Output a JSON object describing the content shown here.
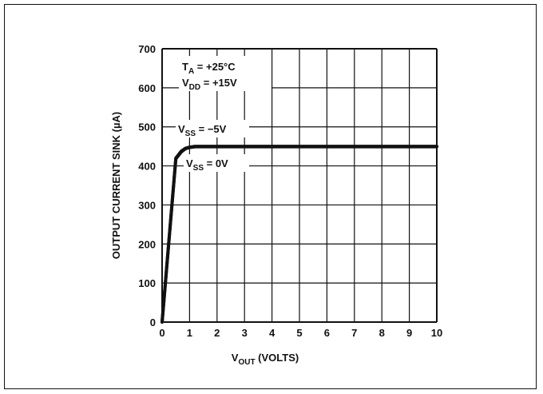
{
  "chart_data": {
    "type": "line",
    "title": "",
    "xlabel_main": "V",
    "xlabel_sub": "OUT",
    "xlabel_suffix": " (VOLTS)",
    "ylabel": "OUTPUT CURRENT SINK (µA)",
    "xlim": [
      0,
      10
    ],
    "ylim": [
      0,
      700
    ],
    "x_ticks": [
      "0",
      "1",
      "2",
      "3",
      "4",
      "5",
      "6",
      "7",
      "8",
      "9",
      "10"
    ],
    "y_ticks": [
      "0",
      "100",
      "200",
      "300",
      "400",
      "500",
      "600",
      "700"
    ],
    "grid": true,
    "series": [
      {
        "name": "VSS = -5V",
        "x": [
          0,
          0.5,
          0.7,
          0.85,
          1.0,
          1.2,
          10
        ],
        "y": [
          0,
          420,
          438,
          445,
          448,
          450,
          450
        ]
      },
      {
        "name": "VSS = 0V",
        "x": [
          0,
          0.5,
          0.7,
          0.85,
          1.0,
          1.2,
          10
        ],
        "y": [
          0,
          418,
          436,
          444,
          447,
          449,
          449
        ]
      }
    ],
    "annotations": {
      "ta": {
        "main": "T",
        "sub": "A",
        "rest": " = +25°C"
      },
      "vdd": {
        "main": "V",
        "sub": "DD",
        "rest": " = +15V"
      },
      "vss_neg": {
        "main": "V",
        "sub": "SS",
        "rest": " = −5V"
      },
      "vss_zero": {
        "main": "V",
        "sub": "SS",
        "rest": " = 0V"
      }
    },
    "line_color": "#111111"
  }
}
